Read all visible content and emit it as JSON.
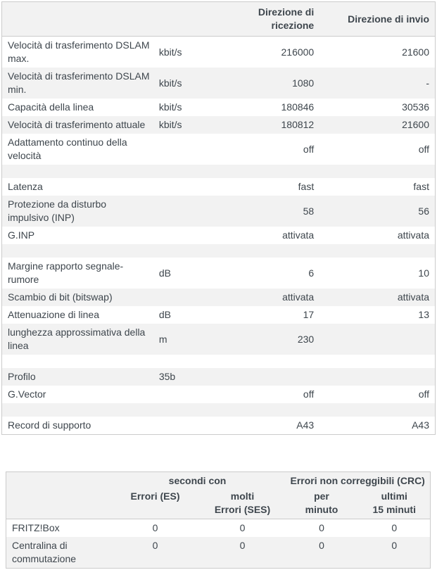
{
  "theme": {
    "stripe_bg": "#f2f2f2",
    "row_bg": "#ffffff",
    "border": "#cbcbcb",
    "text": "#3e464d"
  },
  "dsl_table": {
    "header_rx": "Direzione di ricezione",
    "header_tx": "Direzione di invio",
    "rows": [
      {
        "label": "Velocità di trasferimento DSLAM\nmax.",
        "unit": "kbit/s",
        "rx": "216000",
        "tx": "21600"
      },
      {
        "label": "Velocità di trasferimento DSLAM\nmin.",
        "unit": "kbit/s",
        "rx": "1080",
        "tx": "-"
      },
      {
        "label": "Capacità della linea",
        "unit": "kbit/s",
        "rx": "180846",
        "tx": "30536"
      },
      {
        "label": "Velocità di trasferimento attuale",
        "unit": "kbit/s",
        "rx": "180812",
        "tx": "21600"
      },
      {
        "label": "Adattamento continuo della\nvelocità",
        "unit": "",
        "rx": "off",
        "tx": "off"
      },
      {
        "label": "",
        "unit": "",
        "rx": "",
        "tx": ""
      },
      {
        "label": "Latenza",
        "unit": "",
        "rx": "fast",
        "tx": "fast"
      },
      {
        "label": "Protezione da disturbo\nimpulsivo (INP)",
        "unit": "",
        "rx": "58",
        "tx": "56"
      },
      {
        "label": "G.INP",
        "unit": "",
        "rx": "attivata",
        "tx": "attivata"
      },
      {
        "label": "",
        "unit": "",
        "rx": "",
        "tx": ""
      },
      {
        "label": "Margine rapporto segnale-\nrumore",
        "unit": "dB",
        "rx": "6",
        "tx": "10"
      },
      {
        "label": "Scambio di bit (bitswap)",
        "unit": "",
        "rx": "attivata",
        "tx": "attivata"
      },
      {
        "label": "Attenuazione di linea",
        "unit": "dB",
        "rx": "17",
        "tx": "13"
      },
      {
        "label": "lunghezza approssimativa della\nlinea",
        "unit": "m",
        "rx": "230",
        "tx": ""
      },
      {
        "label": "",
        "unit": "",
        "rx": "",
        "tx": ""
      },
      {
        "label": "Profilo",
        "unit": "35b",
        "rx": "",
        "tx": ""
      },
      {
        "label": "G.Vector",
        "unit": "",
        "rx": "off",
        "tx": "off"
      },
      {
        "label": "",
        "unit": "",
        "rx": "",
        "tx": ""
      },
      {
        "label": "Record di supporto",
        "unit": "",
        "rx": "A43",
        "tx": "A43"
      }
    ]
  },
  "error_table": {
    "group_seconds_label": "secondi con",
    "group_crc_label": "Errori non correggibili (CRC)",
    "col_headers": {
      "es": "Errori (ES)",
      "ses": "molti\nErrori (SES)",
      "per_minuto": "per\nminuto",
      "ultimi": "ultimi\n15 minuti"
    },
    "rows": [
      {
        "label": "FRITZ!Box",
        "values": [
          "0",
          "0",
          "0",
          "0"
        ]
      },
      {
        "label": "Centralina di\ncommutazione",
        "values": [
          "0",
          "0",
          "0",
          "0"
        ]
      }
    ]
  }
}
